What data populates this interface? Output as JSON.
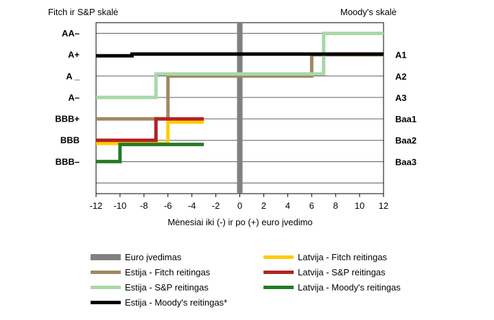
{
  "left_scale_title": "Fitch ir S&P skalė",
  "right_scale_title": "Moody's skalė",
  "chart_data": {
    "type": "line",
    "line_shape": "step",
    "xlabel": "Mėnesiai iki (-) ir po (+) euro įvedimo",
    "xlim": [
      -12,
      12
    ],
    "x_ticks": [
      "-12",
      "-10",
      "-8",
      "-6",
      "-4",
      "-2",
      "0",
      "2",
      "4",
      "6",
      "8",
      "10",
      "12"
    ],
    "ylim": [
      0.5,
      8.5
    ],
    "left_tick_labels": [
      {
        "label": "AA–",
        "y": 8
      },
      {
        "label": "A+",
        "y": 7
      },
      {
        "label": "A _",
        "y": 6
      },
      {
        "label": "A–",
        "y": 5
      },
      {
        "label": "BBB+",
        "y": 4
      },
      {
        "label": "BBB",
        "y": 3
      },
      {
        "label": "BBB–",
        "y": 2
      }
    ],
    "right_tick_labels": [
      {
        "label": "A1",
        "y": 7
      },
      {
        "label": "A2",
        "y": 6
      },
      {
        "label": "A3",
        "y": 5
      },
      {
        "label": "Baa1",
        "y": 4
      },
      {
        "label": "Baa2",
        "y": 3
      },
      {
        "label": "Baa3",
        "y": 2
      }
    ],
    "grid": "horizontal",
    "series": [
      {
        "name": "Euro įvedimas",
        "color": "#808080",
        "kind": "vline",
        "x": 0
      },
      {
        "name": "Latvija - Fitch reitingas",
        "color": "#ffcc00",
        "points": [
          [
            -12,
            2.85
          ],
          [
            -6,
            2.85
          ],
          [
            -6,
            3.85
          ],
          [
            -3,
            3.85
          ]
        ]
      },
      {
        "name": "Estija - Fitch reitingas",
        "color": "#a08862",
        "points": [
          [
            -12,
            4
          ],
          [
            -6,
            4
          ],
          [
            -6,
            6
          ],
          [
            6,
            6
          ],
          [
            6,
            7
          ],
          [
            12,
            7
          ]
        ]
      },
      {
        "name": "Latvija - S&P reitingas",
        "color": "#b22222",
        "points": [
          [
            -12,
            3
          ],
          [
            -7,
            3
          ],
          [
            -7,
            4
          ],
          [
            -3,
            4
          ]
        ]
      },
      {
        "name": "Estija - S&P reitingas",
        "color": "#a8d8a8",
        "points": [
          [
            -12,
            5
          ],
          [
            -7,
            5
          ],
          [
            -7,
            6.1
          ],
          [
            7,
            6.1
          ],
          [
            7,
            8
          ],
          [
            12,
            8
          ]
        ]
      },
      {
        "name": "Latvija - Moody's reitingas",
        "color": "#267a26",
        "points": [
          [
            -12,
            2
          ],
          [
            -10,
            2
          ],
          [
            -10,
            2.8
          ],
          [
            -3,
            2.8
          ]
        ]
      },
      {
        "name": "Estija - Moody's reitingas*",
        "color": "#000000",
        "points": [
          [
            -12,
            6.95
          ],
          [
            -9,
            6.95
          ],
          [
            -9,
            7.03
          ],
          [
            12,
            7.03
          ]
        ]
      }
    ]
  }
}
